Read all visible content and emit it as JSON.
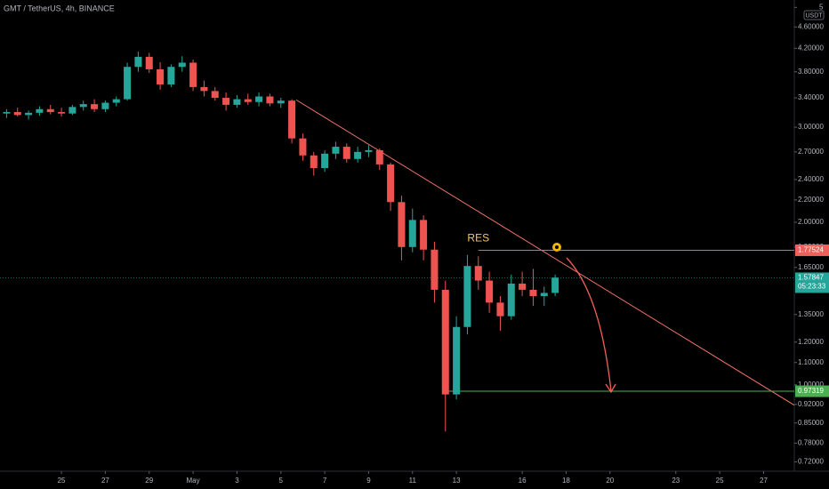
{
  "header": {
    "title": "GMT / TetherUS, 4h, BINANCE"
  },
  "chart_data": {
    "type": "candlestick",
    "x": [
      22.5,
      23,
      23.5,
      24,
      24.5,
      25,
      25.5,
      26,
      26.5,
      27,
      27.5,
      28,
      28.5,
      29,
      29.5,
      30,
      30.5,
      31,
      31.5,
      32,
      32.5,
      33,
      33.5,
      34,
      34.5,
      35,
      35.5,
      36,
      36.5,
      37,
      37.5,
      38,
      38.5,
      39,
      39.5,
      40,
      40.5,
      41,
      41.5,
      42,
      42.5,
      43,
      43.5,
      44,
      44.5,
      45,
      45.5,
      46,
      46.5,
      47,
      47.5
    ],
    "open": [
      3.18,
      3.2,
      3.16,
      3.19,
      3.24,
      3.2,
      3.18,
      3.27,
      3.31,
      3.24,
      3.33,
      3.38,
      3.88,
      4.05,
      3.84,
      3.6,
      3.88,
      3.95,
      3.56,
      3.5,
      3.4,
      3.3,
      3.38,
      3.34,
      3.42,
      3.32,
      3.36,
      2.86,
      2.66,
      2.52,
      2.68,
      2.76,
      2.62,
      2.7,
      2.72,
      2.56,
      2.18,
      1.8,
      2.02,
      1.78,
      1.5,
      0.96,
      1.28,
      1.66,
      1.56,
      1.42,
      1.34,
      1.54,
      1.5,
      1.46,
      1.48
    ],
    "high": [
      3.24,
      3.26,
      3.22,
      3.28,
      3.3,
      3.26,
      3.3,
      3.36,
      3.38,
      3.36,
      3.42,
      3.95,
      4.14,
      4.12,
      3.96,
      3.92,
      4.06,
      4.0,
      3.66,
      3.56,
      3.48,
      3.44,
      3.46,
      3.48,
      3.46,
      3.4,
      3.38,
      2.92,
      2.7,
      2.72,
      2.82,
      2.8,
      2.76,
      2.78,
      2.74,
      2.58,
      2.24,
      2.12,
      2.06,
      1.84,
      1.56,
      1.34,
      1.74,
      1.73,
      1.62,
      1.46,
      1.6,
      1.62,
      1.64,
      1.52,
      1.6
    ],
    "low": [
      3.12,
      3.14,
      3.1,
      3.15,
      3.17,
      3.14,
      3.16,
      3.22,
      3.2,
      3.2,
      3.28,
      3.36,
      3.8,
      3.78,
      3.52,
      3.56,
      3.8,
      3.5,
      3.42,
      3.36,
      3.22,
      3.26,
      3.3,
      3.28,
      3.28,
      3.26,
      2.8,
      2.6,
      2.44,
      2.48,
      2.62,
      2.58,
      2.58,
      2.64,
      2.5,
      2.1,
      1.7,
      1.76,
      1.7,
      1.42,
      0.82,
      0.94,
      1.24,
      1.5,
      1.36,
      1.26,
      1.32,
      1.46,
      1.4,
      1.4,
      1.46
    ],
    "close": [
      3.2,
      3.16,
      3.19,
      3.24,
      3.2,
      3.18,
      3.27,
      3.31,
      3.24,
      3.33,
      3.38,
      3.88,
      4.05,
      3.84,
      3.6,
      3.88,
      3.95,
      3.56,
      3.5,
      3.4,
      3.3,
      3.38,
      3.34,
      3.42,
      3.32,
      3.36,
      2.86,
      2.66,
      2.52,
      2.68,
      2.76,
      2.62,
      2.7,
      2.72,
      2.56,
      2.18,
      1.8,
      2.02,
      1.78,
      1.5,
      0.96,
      1.28,
      1.66,
      1.56,
      1.42,
      1.34,
      1.54,
      1.5,
      1.46,
      1.48,
      1.58
    ],
    "up_color": "#26a69a",
    "down_color": "#ef5350",
    "log_scale": true,
    "grid": false,
    "ylim": [
      0.692,
      5.16
    ],
    "yticks": [
      5,
      {
        "value": 4.6,
        "label": "4.60000"
      },
      {
        "value": 4.2,
        "label": "4.20000"
      },
      {
        "value": 3.8,
        "label": "3.80000"
      },
      {
        "value": 3.4,
        "label": "3.40000"
      },
      {
        "value": 3.0,
        "label": "3.00000"
      },
      {
        "value": 2.7,
        "label": "2.70000"
      },
      {
        "value": 2.4,
        "label": "2.40000"
      },
      {
        "value": 2.2,
        "label": "2.20000"
      },
      {
        "value": 2.0,
        "label": "2.00000"
      },
      {
        "value": 1.8,
        "label": "1.80000"
      },
      {
        "value": 1.65,
        "label": "1.65000"
      },
      {
        "value": 1.35,
        "label": "1.35000"
      },
      {
        "value": 1.2,
        "label": "1.20000"
      },
      {
        "value": 1.1,
        "label": "1.10000"
      },
      {
        "value": 1.0,
        "label": "1.00000"
      },
      {
        "value": 0.92,
        "label": "0.92000"
      },
      {
        "value": 0.85,
        "label": "0.85000"
      },
      {
        "value": 0.78,
        "label": "0.78000"
      },
      {
        "value": 0.72,
        "label": "0.72000"
      }
    ],
    "currency": "USDT",
    "xlim": [
      22.2,
      58.4
    ],
    "xticks": [
      25,
      27,
      29,
      {
        "value": 31,
        "label": "May"
      },
      {
        "value": 33,
        "label": "3"
      },
      {
        "value": 35,
        "label": "5"
      },
      {
        "value": 37,
        "label": "7"
      },
      {
        "value": 39,
        "label": "9"
      },
      {
        "value": 41,
        "label": "11"
      },
      {
        "value": 43,
        "label": "13"
      },
      {
        "value": 46,
        "label": "16"
      },
      {
        "value": 48,
        "label": "18"
      },
      {
        "value": 50,
        "label": "20"
      },
      {
        "value": 53,
        "label": "23"
      },
      {
        "value": 55,
        "label": "25"
      },
      {
        "value": 57,
        "label": "27"
      }
    ],
    "annotations": {
      "res_label": "RES",
      "resistance": {
        "value": 1.77524,
        "label": "1.77524",
        "x": 44,
        "color": "#f0605a"
      },
      "support": {
        "value": 0.97319,
        "label": "0.97319",
        "x": 42.6,
        "color": "#4caf50"
      },
      "last_price": {
        "value": 1.57847,
        "label": "1.57847",
        "countdown": "05:23:33",
        "color": "#26a69a"
      },
      "trendline": {
        "x": [
          35.7,
          58.4
        ],
        "y": [
          3.37,
          0.917
        ],
        "color": "#f0746c"
      }
    }
  }
}
